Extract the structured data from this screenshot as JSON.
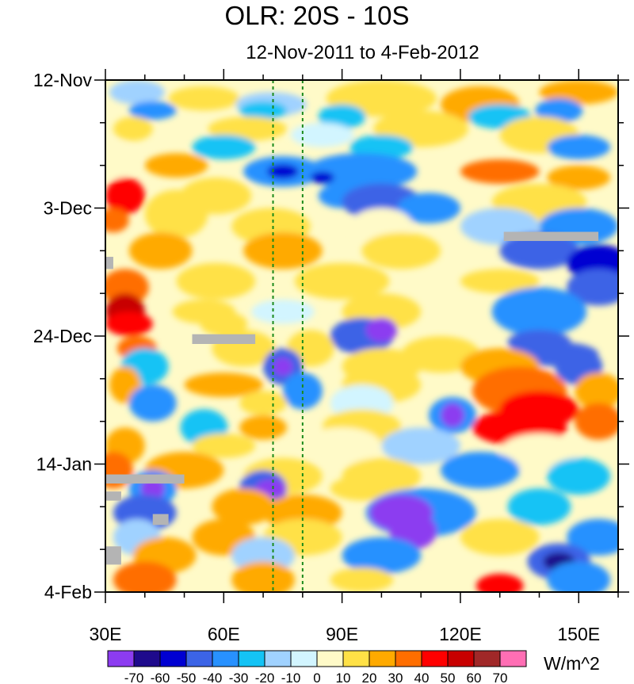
{
  "chart_data": {
    "type": "heatmap",
    "title": "OLR: 20S - 10S",
    "subtitle": "12-Nov-2011 to 4-Feb-2012",
    "x_axis": {
      "range": [
        30,
        160
      ],
      "ticks": [
        30,
        60,
        90,
        120,
        150
      ],
      "tick_labels": [
        "30E",
        "60E",
        "90E",
        "120E",
        "150E"
      ]
    },
    "y_axis": {
      "range_days": [
        0,
        84
      ],
      "ticks": [
        0,
        21,
        42,
        63,
        84
      ],
      "tick_labels": [
        "12-Nov",
        "3-Dec",
        "24-Dec",
        "14-Jan",
        "4-Feb"
      ]
    },
    "reference_lines_longitude": [
      72.5,
      80
    ],
    "colorbar": {
      "units": "W/m^2",
      "labels": [
        "-70",
        "-60",
        "-50",
        "-40",
        "-30",
        "-20",
        "-10",
        "0",
        "10",
        "20",
        "30",
        "40",
        "50",
        "60",
        "70"
      ],
      "colors": [
        "#8c3cf0",
        "#1e0a8c",
        "#0000d2",
        "#3c64e6",
        "#2891ff",
        "#14c3f5",
        "#a0d2ff",
        "#d2f5ff",
        "#fffac8",
        "#ffe146",
        "#ffaa00",
        "#ff6e00",
        "#ff0000",
        "#c80000",
        "#a02828",
        "#ff6eb4"
      ]
    }
  }
}
